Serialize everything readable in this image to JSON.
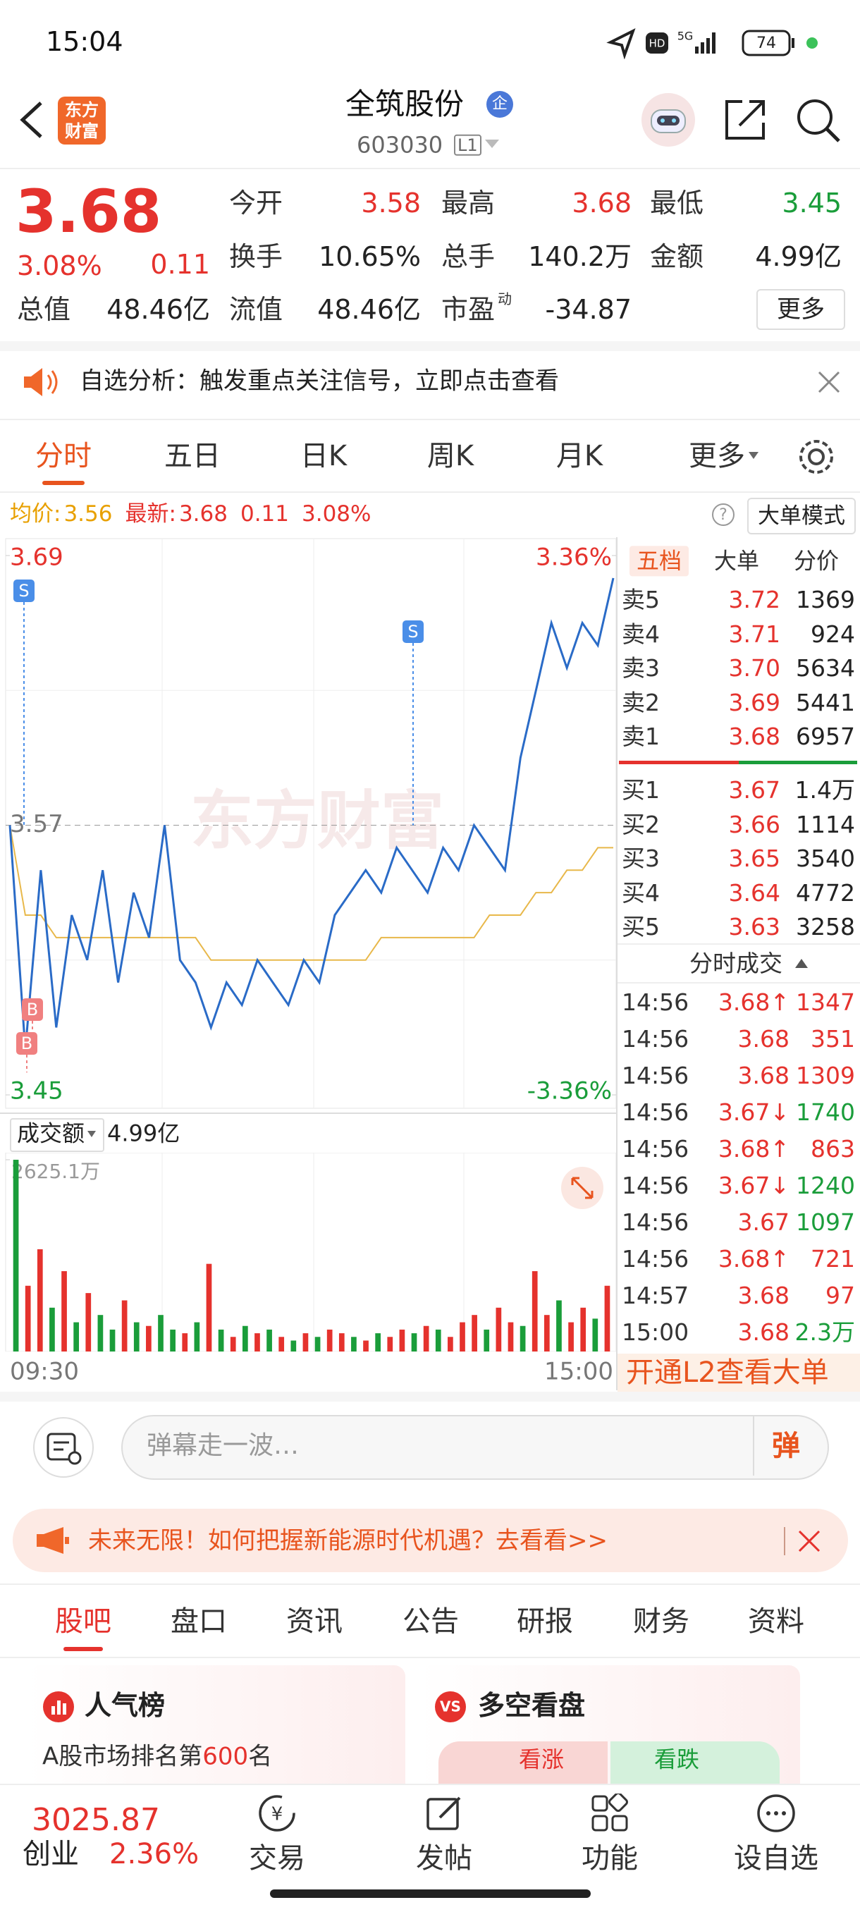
{
  "status": {
    "time": "15:04",
    "network": "5G",
    "battery": "74"
  },
  "header": {
    "logo": [
      "东方",
      "财富"
    ],
    "name": "全筑股份",
    "badge": "企",
    "code": "603030",
    "level": "L1"
  },
  "quote": {
    "price": "3.68",
    "pct": "3.08%",
    "change": "0.11",
    "more": "更多",
    "fields": [
      {
        "label": "今开",
        "value": "3.58",
        "color": "#e5322d"
      },
      {
        "label": "最高",
        "value": "3.68",
        "color": "#e5322d"
      },
      {
        "label": "最低",
        "value": "3.45",
        "color": "#1a9d3a"
      },
      {
        "label": "换手",
        "value": "10.65%",
        "color": "#222"
      },
      {
        "label": "总手",
        "value": "140.2万",
        "color": "#222"
      },
      {
        "label": "金额",
        "value": "4.99亿",
        "color": "#222"
      },
      {
        "label": "总值",
        "value": "48.46亿",
        "color": "#222"
      },
      {
        "label": "流值",
        "value": "48.46亿",
        "color": "#222"
      },
      {
        "label": "市盈",
        "sup": "动",
        "value": "-34.87",
        "color": "#222"
      }
    ]
  },
  "notice": {
    "text": "自选分析：触发重点关注信号，立即点击查看"
  },
  "tabs": [
    "分时",
    "五日",
    "日K",
    "周K",
    "月K",
    "更多"
  ],
  "info": {
    "avg_label": "均价:",
    "avg": "3.56",
    "last_label": "最新:",
    "last": "3.68",
    "change": "0.11",
    "pct": "3.08%",
    "mode": "大单模式"
  },
  "chart_data": [
    {
      "type": "line",
      "ylim": [
        3.45,
        3.69
      ],
      "yticks": [
        3.45,
        3.57,
        3.69
      ],
      "y2lim": [
        -3.36,
        3.36
      ],
      "y2ticks": [
        {
          "value": -3.36,
          "label": "-3.36%"
        },
        {
          "value": 3.36,
          "label": "3.36%"
        }
      ],
      "watermark": "东方财富",
      "annotations": [
        "S",
        "S",
        "B",
        "B"
      ],
      "series": [
        {
          "color": "#2a6bc7",
          "values": [
            3.57,
            3.47,
            3.55,
            3.48,
            3.53,
            3.51,
            3.55,
            3.5,
            3.54,
            3.52,
            3.57,
            3.51,
            3.5,
            3.48,
            3.5,
            3.49,
            3.51,
            3.5,
            3.49,
            3.51,
            3.5,
            3.53,
            3.54,
            3.55,
            3.54,
            3.56,
            3.55,
            3.54,
            3.56,
            3.55,
            3.57,
            3.56,
            3.55,
            3.6,
            3.63,
            3.66,
            3.64,
            3.66,
            3.65,
            3.68
          ]
        },
        {
          "color": "#e8b84a",
          "values": [
            3.57,
            3.53,
            3.53,
            3.52,
            3.52,
            3.52,
            3.52,
            3.52,
            3.52,
            3.52,
            3.52,
            3.52,
            3.52,
            3.51,
            3.51,
            3.51,
            3.51,
            3.51,
            3.51,
            3.51,
            3.51,
            3.51,
            3.51,
            3.51,
            3.52,
            3.52,
            3.52,
            3.52,
            3.52,
            3.52,
            3.52,
            3.53,
            3.53,
            3.53,
            3.54,
            3.54,
            3.55,
            3.55,
            3.56,
            3.56
          ]
        }
      ]
    },
    {
      "type": "bar",
      "label": "成交额",
      "total": "4.99亿",
      "ylim": [
        0,
        2625.1
      ],
      "yticks": [
        {
          "value": 2625.1,
          "label": "2625.1万"
        }
      ],
      "x_labels": [
        "09:30",
        "15:00"
      ],
      "values": [
        2625,
        900,
        1400,
        600,
        1100,
        400,
        800,
        500,
        300,
        700,
        400,
        350,
        500,
        300,
        250,
        400,
        1200,
        300,
        200,
        350,
        250,
        300,
        200,
        150,
        250,
        200,
        300,
        250,
        200,
        150,
        250,
        200,
        300,
        250,
        350,
        300,
        200,
        400,
        500,
        300,
        600,
        400,
        350,
        1100,
        500,
        700,
        400,
        600,
        450,
        900
      ],
      "colors": [
        "#1a9d3a",
        "#e5322d",
        "#e5322d",
        "#1a9d3a",
        "#e5322d",
        "#1a9d3a",
        "#e5322d",
        "#1a9d3a",
        "#1a9d3a",
        "#e5322d",
        "#1a9d3a",
        "#e5322d",
        "#1a9d3a",
        "#1a9d3a",
        "#e5322d",
        "#1a9d3a",
        "#e5322d",
        "#1a9d3a",
        "#e5322d",
        "#1a9d3a",
        "#e5322d",
        "#1a9d3a",
        "#e5322d",
        "#1a9d3a",
        "#e5322d",
        "#1a9d3a",
        "#e5322d",
        "#e5322d",
        "#1a9d3a",
        "#e5322d",
        "#1a9d3a",
        "#e5322d",
        "#e5322d",
        "#1a9d3a",
        "#e5322d",
        "#1a9d3a",
        "#e5322d",
        "#e5322d",
        "#e5322d",
        "#1a9d3a",
        "#e5322d",
        "#e5322d",
        "#1a9d3a",
        "#e5322d",
        "#e5322d",
        "#1a9d3a",
        "#e5322d",
        "#e5322d",
        "#1a9d3a",
        "#e5322d"
      ]
    }
  ],
  "order_book": {
    "tabs": [
      "五档",
      "大单",
      "分价"
    ],
    "sell": [
      {
        "label": "卖5",
        "price": "3.72",
        "vol": "1369"
      },
      {
        "label": "卖4",
        "price": "3.71",
        "vol": "924"
      },
      {
        "label": "卖3",
        "price": "3.70",
        "vol": "5634"
      },
      {
        "label": "卖2",
        "price": "3.69",
        "vol": "5441"
      },
      {
        "label": "卖1",
        "price": "3.68",
        "vol": "6957"
      }
    ],
    "buy": [
      {
        "label": "买1",
        "price": "3.67",
        "vol": "1.4万"
      },
      {
        "label": "买2",
        "price": "3.66",
        "vol": "1114"
      },
      {
        "label": "买3",
        "price": "3.65",
        "vol": "3540"
      },
      {
        "label": "买4",
        "price": "3.64",
        "vol": "4772"
      },
      {
        "label": "买5",
        "price": "3.63",
        "vol": "3258"
      }
    ]
  },
  "trades": {
    "title": "分时成交",
    "rows": [
      {
        "time": "14:56",
        "price": "3.68↑",
        "vol": "1347",
        "price_color": "#e5322d",
        "vol_color": "#e5322d"
      },
      {
        "time": "14:56",
        "price": "3.68",
        "vol": "351",
        "price_color": "#e5322d",
        "vol_color": "#e5322d"
      },
      {
        "time": "14:56",
        "price": "3.68",
        "vol": "1309",
        "price_color": "#e5322d",
        "vol_color": "#e5322d"
      },
      {
        "time": "14:56",
        "price": "3.67↓",
        "vol": "1740",
        "price_color": "#e5322d",
        "vol_color": "#1a9d3a"
      },
      {
        "time": "14:56",
        "price": "3.68↑",
        "vol": "863",
        "price_color": "#e5322d",
        "vol_color": "#e5322d"
      },
      {
        "time": "14:56",
        "price": "3.67↓",
        "vol": "1240",
        "price_color": "#e5322d",
        "vol_color": "#1a9d3a"
      },
      {
        "time": "14:56",
        "price": "3.67",
        "vol": "1097",
        "price_color": "#e5322d",
        "vol_color": "#1a9d3a"
      },
      {
        "time": "14:56",
        "price": "3.68↑",
        "vol": "721",
        "price_color": "#e5322d",
        "vol_color": "#e5322d"
      },
      {
        "time": "14:57",
        "price": "3.68",
        "vol": "97",
        "price_color": "#e5322d",
        "vol_color": "#e5322d"
      },
      {
        "time": "15:00",
        "price": "3.68",
        "vol": "2.3万",
        "price_color": "#e5322d",
        "vol_color": "#1a9d3a"
      }
    ],
    "l2": "开通L2查看大单"
  },
  "comment": {
    "placeholder": "弹幕走一波…",
    "button": "弹"
  },
  "ad": {
    "text": "未来无限！如何把握新能源时代机遇？去看看>>"
  },
  "tabs2": [
    "股吧",
    "盘口",
    "资讯",
    "公告",
    "研报",
    "财务",
    "资料"
  ],
  "cards": [
    {
      "title": "人气榜",
      "text_pre": "A股市场排名第",
      "rank": "600",
      "text_post": "名"
    },
    {
      "title": "多空看盘",
      "up": "看涨",
      "down": "看跌"
    }
  ],
  "bottom": {
    "index_value": "3025.87",
    "index_name": "创业",
    "index_pct": "2.36%",
    "nav": [
      "交易",
      "发帖",
      "功能",
      "设自选"
    ]
  }
}
